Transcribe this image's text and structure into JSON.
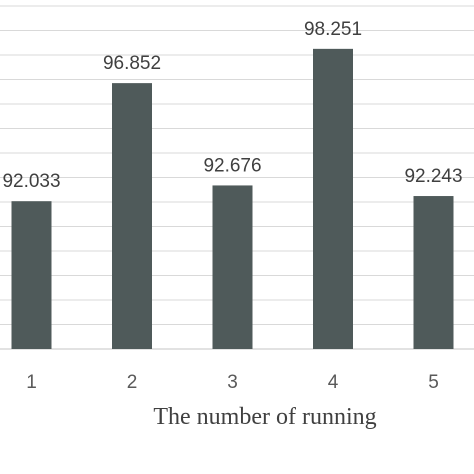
{
  "chart_data": {
    "type": "bar",
    "categories": [
      "1",
      "2",
      "3",
      "4",
      "5"
    ],
    "values": [
      92.033,
      96.852,
      92.676,
      98.251,
      92.243
    ],
    "data_labels": [
      "92.033",
      "96.852",
      "92.676",
      "98.251",
      "92.243"
    ],
    "xlabel": "The number of running",
    "ylabel": "",
    "ylim": [
      86,
      100
    ],
    "grid": true,
    "bar_color": "#4f5a5a",
    "grid_color": "#d9d9d9"
  }
}
